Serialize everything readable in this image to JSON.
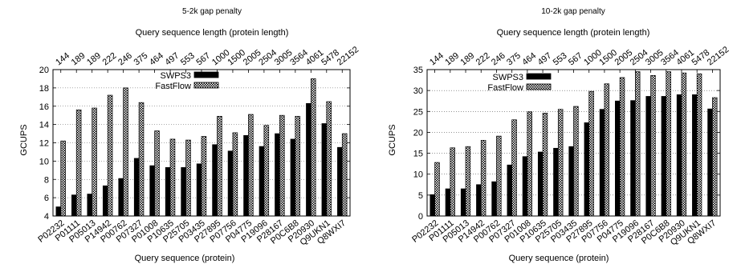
{
  "figure": {
    "charts": [
      {
        "title": "5-2k gap penalty",
        "top_axis_label": "Query sequence length (protein length)",
        "xlabel": "Query sequence (protein)",
        "ylabel": "GCUPS",
        "legend": [
          "SWPS3",
          "FastFlow"
        ]
      },
      {
        "title": "10-2k gap penalty",
        "top_axis_label": "Query sequence length (protein length)",
        "xlabel": "Query sequence (protein)",
        "ylabel": "GCUPS",
        "legend": [
          "SWPS3",
          "FastFlow"
        ]
      }
    ]
  },
  "chart_data": [
    {
      "type": "bar",
      "title": "5-2k gap penalty",
      "xlabel": "Query sequence (protein)",
      "ylabel": "GCUPS",
      "top_xlabel": "Query sequence length (protein length)",
      "ylim": [
        4,
        20
      ],
      "yticks": [
        4,
        6,
        8,
        10,
        12,
        14,
        16,
        18,
        20
      ],
      "grid": "horizontal dotted",
      "legend_position": "top-center",
      "categories": [
        "P02232",
        "P01111",
        "P05013",
        "P14942",
        "P00762",
        "P07327",
        "P01008",
        "P10635",
        "P25705",
        "P03435",
        "P27895",
        "P07756",
        "P04775",
        "P19096",
        "P28167",
        "P0C6B8",
        "P20930",
        "Q9UKN1",
        "Q8WXI7"
      ],
      "top_labels": [
        "144",
        "189",
        "189",
        "222",
        "246",
        "375",
        "464",
        "497",
        "553",
        "567",
        "1000",
        "1500",
        "2005",
        "2504",
        "3005",
        "3564",
        "4061",
        "5478",
        "22152"
      ],
      "series": [
        {
          "name": "SWPS3",
          "color": "#000000",
          "values": [
            5.0,
            6.3,
            6.4,
            7.3,
            8.1,
            10.3,
            9.5,
            9.3,
            9.3,
            9.7,
            11.8,
            11.1,
            12.8,
            11.6,
            13.0,
            12.4,
            16.3,
            14.1,
            11.5
          ]
        },
        {
          "name": "FastFlow",
          "color": "checkered",
          "values": [
            12.2,
            15.6,
            15.8,
            17.2,
            18.0,
            16.4,
            13.3,
            12.4,
            12.3,
            12.7,
            14.9,
            13.1,
            15.1,
            13.9,
            15.0,
            14.9,
            19.0,
            16.5,
            13.0
          ]
        }
      ]
    },
    {
      "type": "bar",
      "title": "10-2k gap penalty",
      "xlabel": "Query sequence (protein)",
      "ylabel": "GCUPS",
      "top_xlabel": "Query sequence length (protein length)",
      "ylim": [
        0,
        35
      ],
      "yticks": [
        0,
        5,
        10,
        15,
        20,
        25,
        30,
        35
      ],
      "grid": "horizontal dotted",
      "legend_position": "top-left",
      "categories": [
        "P02232",
        "P01111",
        "P05013",
        "P14942",
        "P00762",
        "P07327",
        "P01008",
        "P10635",
        "P25705",
        "P03435",
        "P27895",
        "P07756",
        "P04775",
        "P19096",
        "P28167",
        "P0C6B8",
        "P20930",
        "Q9UKN1",
        "Q8WXI7"
      ],
      "top_labels": [
        "144",
        "189",
        "189",
        "222",
        "246",
        "375",
        "464",
        "497",
        "553",
        "567",
        "1000",
        "1500",
        "2005",
        "2504",
        "3005",
        "3564",
        "4061",
        "5478",
        "22152"
      ],
      "series": [
        {
          "name": "SWPS3",
          "color": "#000000",
          "values": [
            5.1,
            6.5,
            6.5,
            7.5,
            8.2,
            12.2,
            14.2,
            15.3,
            16.2,
            16.6,
            22.3,
            25.5,
            27.5,
            27.6,
            28.6,
            28.6,
            29.0,
            29.0,
            25.6
          ]
        },
        {
          "name": "FastFlow",
          "color": "checkered",
          "values": [
            12.8,
            16.3,
            16.6,
            18.1,
            19.1,
            23.0,
            24.9,
            24.6,
            25.5,
            26.2,
            29.8,
            31.6,
            33.1,
            34.5,
            33.6,
            34.5,
            34.2,
            34.0,
            28.3
          ]
        }
      ]
    }
  ]
}
